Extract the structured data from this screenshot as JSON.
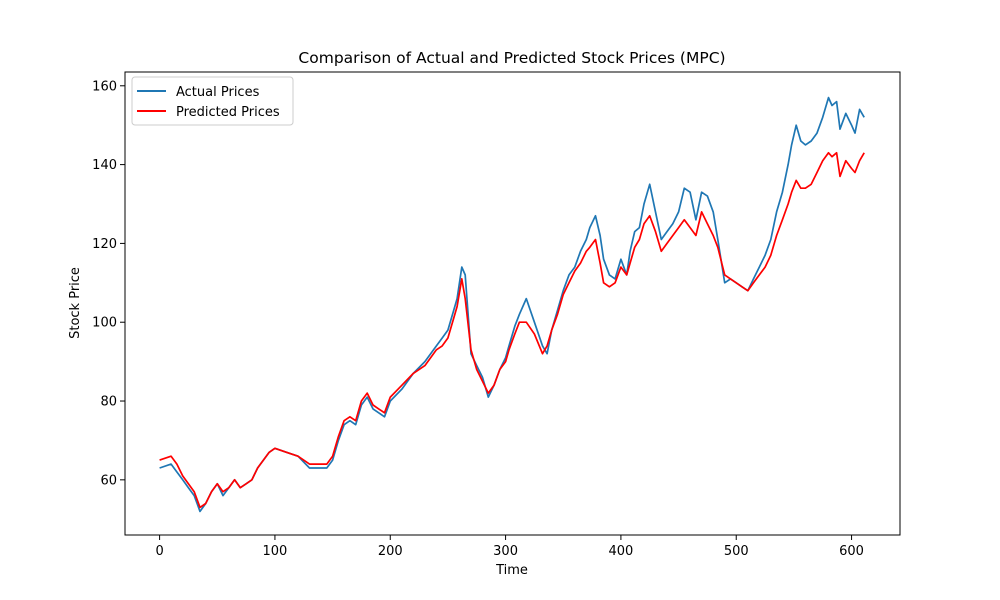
{
  "chart_data": {
    "type": "line",
    "title": "Comparison of Actual and Predicted Stock Prices (MPC)",
    "xlabel": "Time",
    "ylabel": "Stock Price",
    "xlim": [
      -30,
      642
    ],
    "ylim": [
      46,
      163.5
    ],
    "xticks": [
      0,
      100,
      200,
      300,
      400,
      500,
      600
    ],
    "yticks": [
      60,
      80,
      100,
      120,
      140,
      160
    ],
    "grid": false,
    "legend_position": "top-left",
    "x": [
      0,
      10,
      15,
      20,
      25,
      30,
      35,
      40,
      45,
      50,
      55,
      60,
      65,
      70,
      75,
      80,
      85,
      90,
      95,
      100,
      110,
      120,
      130,
      140,
      145,
      150,
      155,
      160,
      165,
      170,
      175,
      180,
      185,
      190,
      195,
      200,
      210,
      220,
      230,
      240,
      245,
      250,
      255,
      258,
      262,
      265,
      270,
      275,
      280,
      285,
      290,
      295,
      300,
      303,
      308,
      312,
      318,
      325,
      332,
      336,
      340,
      345,
      350,
      355,
      360,
      365,
      370,
      373,
      378,
      382,
      385,
      390,
      395,
      400,
      405,
      408,
      412,
      416,
      420,
      425,
      430,
      435,
      440,
      445,
      450,
      455,
      460,
      465,
      470,
      475,
      480,
      484,
      490,
      495,
      500,
      505,
      510,
      515,
      520,
      525,
      530,
      535,
      540,
      545,
      548,
      552,
      556,
      560,
      565,
      570,
      575,
      580,
      583,
      587,
      590,
      595,
      600,
      603,
      607,
      611
    ],
    "series": [
      {
        "name": "Actual Prices",
        "color": "#1f77b4",
        "values": [
          63,
          64,
          62,
          60,
          58,
          56,
          52,
          54,
          57,
          59,
          56,
          58,
          60,
          58,
          59,
          60,
          63,
          65,
          67,
          68,
          67,
          66,
          63,
          63,
          63,
          65,
          70,
          74,
          75,
          74,
          79,
          81,
          78,
          77,
          76,
          80,
          83,
          87,
          90,
          94,
          96,
          98,
          103,
          106,
          114,
          112,
          92,
          89,
          86,
          81,
          84,
          88,
          91,
          94,
          99,
          102,
          106,
          100,
          94,
          92,
          98,
          103,
          108,
          112,
          114,
          118,
          121,
          124,
          127,
          122,
          116,
          112,
          111,
          116,
          112,
          118,
          123,
          124,
          130,
          135,
          128,
          121,
          123,
          125,
          128,
          134,
          133,
          126,
          133,
          132,
          128,
          121,
          110,
          111,
          110,
          109,
          108,
          111,
          114,
          117,
          121,
          128,
          133,
          140,
          145,
          150,
          146,
          145,
          146,
          148,
          152,
          157,
          155,
          156,
          149,
          153,
          150,
          148,
          154,
          152
        ]
      },
      {
        "name": "Predicted Prices",
        "color": "#ff0000",
        "values": [
          65,
          66,
          64,
          61,
          59,
          57,
          53,
          54,
          57,
          59,
          57,
          58,
          60,
          58,
          59,
          60,
          63,
          65,
          67,
          68,
          67,
          66,
          64,
          64,
          64,
          66,
          71,
          75,
          76,
          75,
          80,
          82,
          79,
          78,
          77,
          81,
          84,
          87,
          89,
          93,
          94,
          96,
          101,
          104,
          111,
          106,
          93,
          88,
          85,
          82,
          84,
          88,
          90,
          93,
          97,
          100,
          100,
          97,
          92,
          94,
          98,
          102,
          107,
          110,
          113,
          115,
          118,
          119,
          121,
          115,
          110,
          109,
          110,
          114,
          112,
          115,
          119,
          121,
          125,
          127,
          123,
          118,
          120,
          122,
          124,
          126,
          124,
          122,
          128,
          125,
          122,
          119,
          112,
          111,
          110,
          109,
          108,
          110,
          112,
          114,
          117,
          122,
          126,
          130,
          133,
          136,
          134,
          134,
          135,
          138,
          141,
          143,
          142,
          143,
          137,
          141,
          139,
          138,
          141,
          143
        ]
      }
    ]
  }
}
